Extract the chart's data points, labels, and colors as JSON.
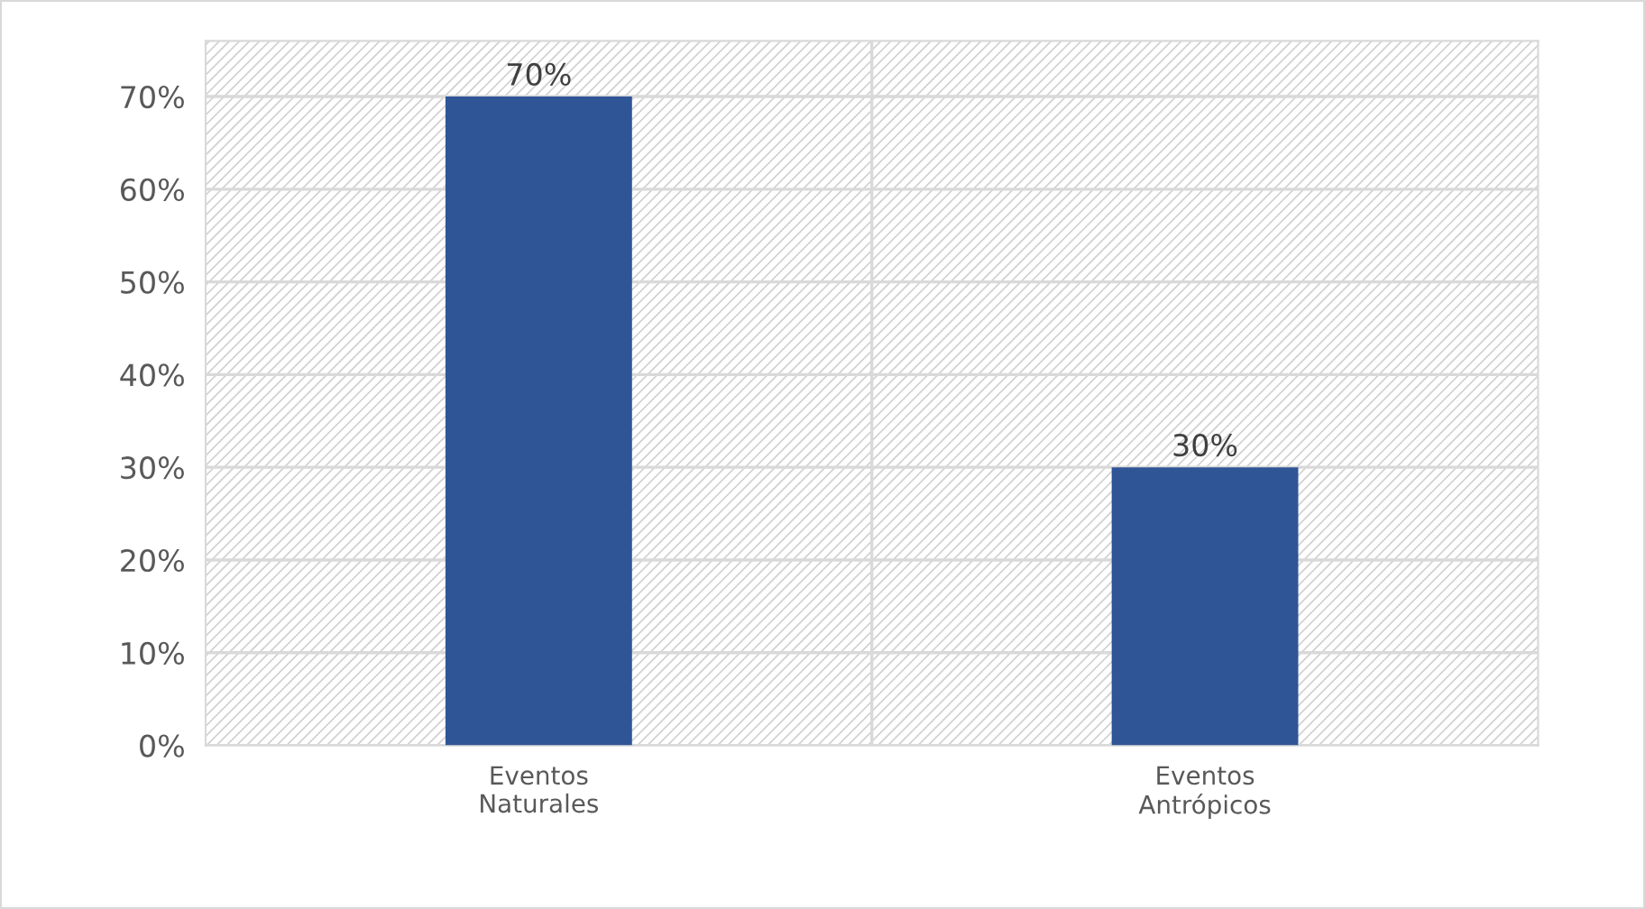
{
  "chart_data": {
    "type": "bar",
    "categories": [
      "Eventos\nNaturales",
      "Eventos\nAntrópicos"
    ],
    "values": [
      70,
      30
    ],
    "color": "#2f5597",
    "value_labels": [
      "70%",
      "30%"
    ],
    "ylim": [
      0,
      76
    ],
    "yticks": [
      {
        "value": 0,
        "label": "0%"
      },
      {
        "value": 10,
        "label": "10%"
      },
      {
        "value": 20,
        "label": "20%"
      },
      {
        "value": 30,
        "label": "30%"
      },
      {
        "value": 40,
        "label": "40%"
      },
      {
        "value": 50,
        "label": "50%"
      },
      {
        "value": 60,
        "label": "60%"
      },
      {
        "value": 70,
        "label": "70%"
      }
    ],
    "grid": true,
    "legend": false
  }
}
